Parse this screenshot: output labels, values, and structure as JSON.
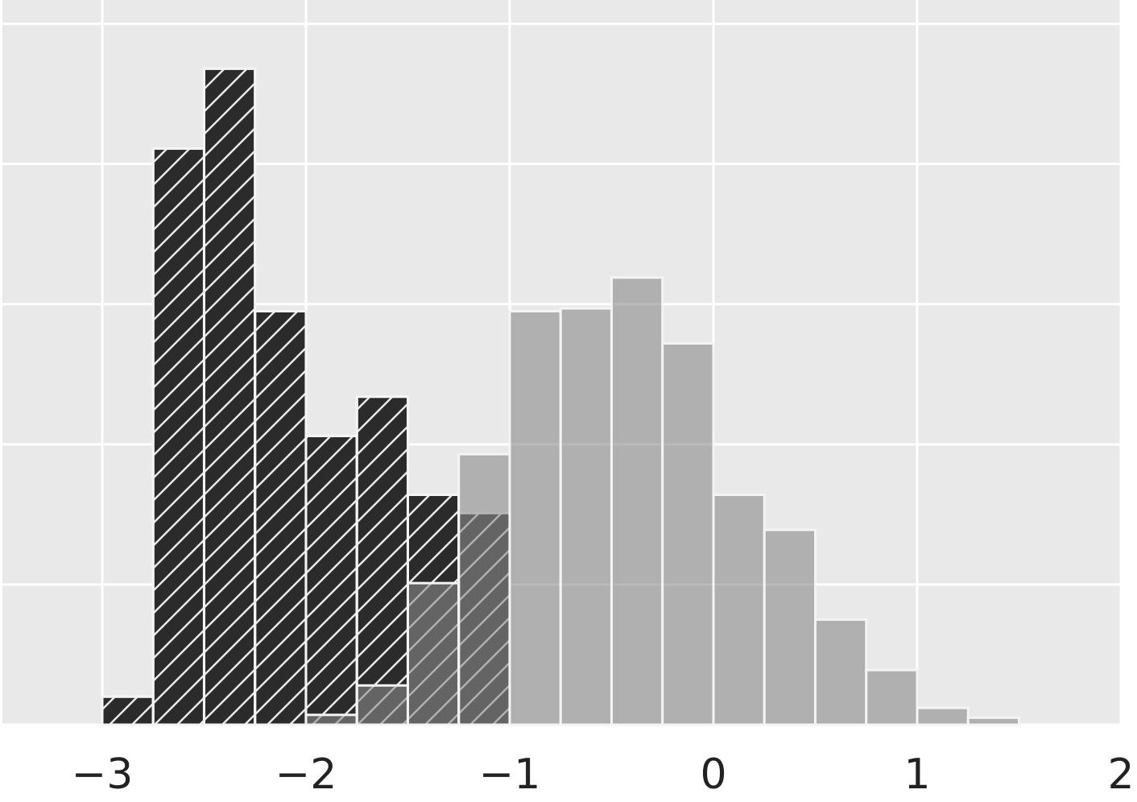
{
  "chart_data": {
    "type": "histogram",
    "series": [
      {
        "color": "#2b2b2b",
        "hatch": "/",
        "opacity": 1,
        "bins": [
          -3,
          -2.75,
          -2.5,
          -2.25,
          -2,
          -1.75,
          -1.5,
          -1.25,
          -1
        ],
        "values": [
          2,
          41.1,
          46.8,
          29.5,
          20.6,
          23.4,
          16.4,
          15.1
        ]
      },
      {
        "color": "#8a8a8a",
        "opacity": 0.6,
        "bins": [
          -2,
          -1.75,
          -1.5,
          -1.25,
          -1,
          -0.75,
          -0.5,
          -0.25,
          0,
          0.25,
          0.5,
          0.75,
          1,
          1.25,
          1.5
        ],
        "values": [
          0.7,
          2.8,
          10.1,
          19.3,
          29.5,
          29.7,
          31.9,
          27.2,
          16.4,
          13.9,
          7.5,
          3.9,
          1.2,
          0.5
        ]
      }
    ],
    "xlim": [
      -3.49,
      2
    ],
    "xticks": [
      {
        "value": -3,
        "label": "−3"
      },
      {
        "value": -2,
        "label": "−2"
      },
      {
        "value": -1,
        "label": "−1"
      },
      0,
      1,
      2
    ],
    "ylim": [
      0,
      51.7
    ],
    "yticks": [
      0,
      10,
      20,
      30,
      40,
      50
    ],
    "grid": true
  }
}
